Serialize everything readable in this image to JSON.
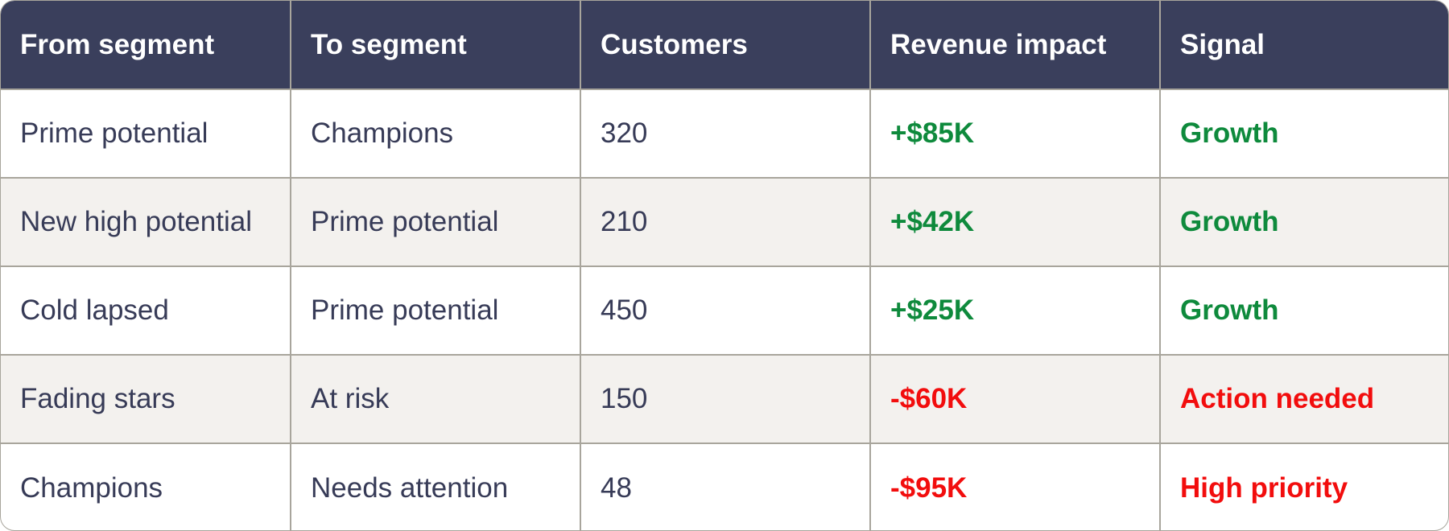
{
  "table": {
    "headers": [
      "From segment",
      "To segment",
      "Customers",
      "Revenue impact",
      "Signal"
    ],
    "rows": [
      {
        "from": "Prime potential",
        "to": "Champions",
        "customers": "320",
        "impact": "+$85K",
        "signal": "Growth"
      },
      {
        "from": "New high potential",
        "to": "Prime potential",
        "customers": "210",
        "impact": "+$42K",
        "signal": "Growth"
      },
      {
        "from": "Cold lapsed",
        "to": "Prime potential",
        "customers": "450",
        "impact": "+$25K",
        "signal": "Growth"
      },
      {
        "from": "Fading stars",
        "to": "At risk",
        "customers": "150",
        "impact": "-$60K",
        "signal": "Action needed"
      },
      {
        "from": "Champions",
        "to": "Needs attention",
        "customers": "48",
        "impact": "-$95K",
        "signal": "High priority"
      }
    ]
  },
  "colors": {
    "header_bg": "#3a3f5c",
    "positive": "#0e8a3c",
    "negative": "#f20d0d",
    "row_alt_bg": "#f3f1ee"
  }
}
